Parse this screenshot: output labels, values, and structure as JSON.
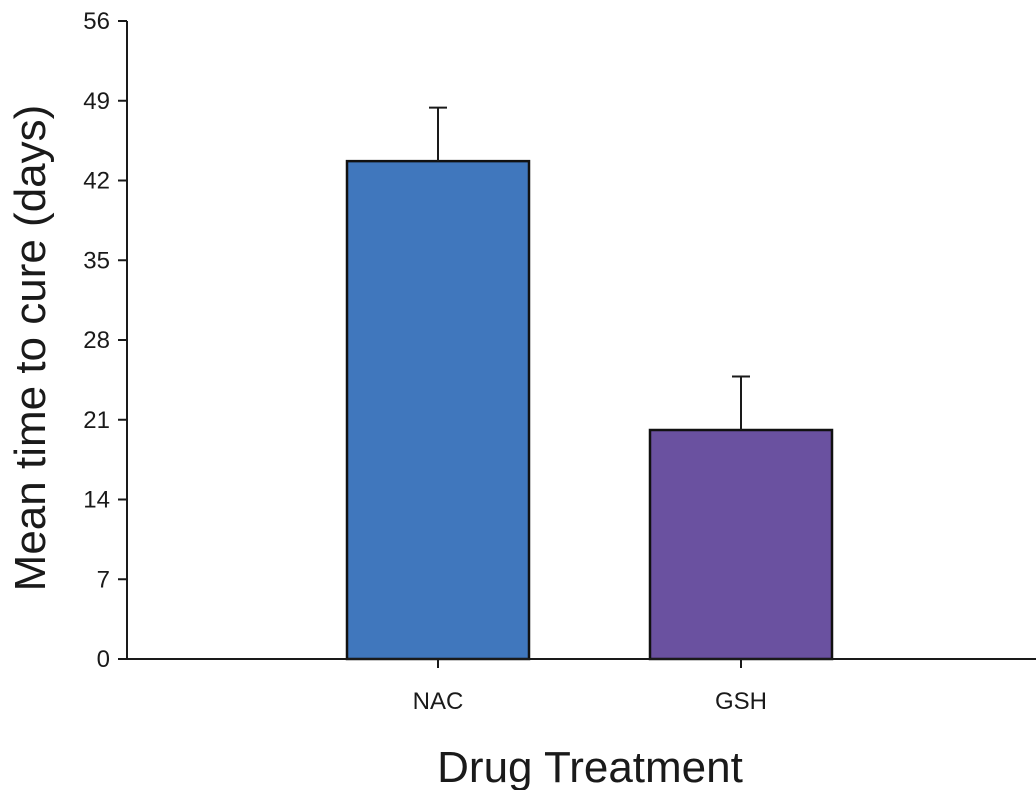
{
  "chart_data": {
    "type": "bar",
    "title": "",
    "xlabel": "Drug Treatment",
    "ylabel": "Mean time to cure (days)",
    "categories": [
      "NAC",
      "GSH"
    ],
    "values": [
      43.7,
      20.1
    ],
    "error_upper": [
      48.4,
      24.8
    ],
    "colors": [
      "#4077bd",
      "#6a51a0"
    ],
    "ylim": [
      0,
      56
    ],
    "yticks": [
      0,
      7,
      14,
      21,
      28,
      35,
      42,
      49,
      56
    ],
    "grid": false,
    "legend": "none"
  }
}
